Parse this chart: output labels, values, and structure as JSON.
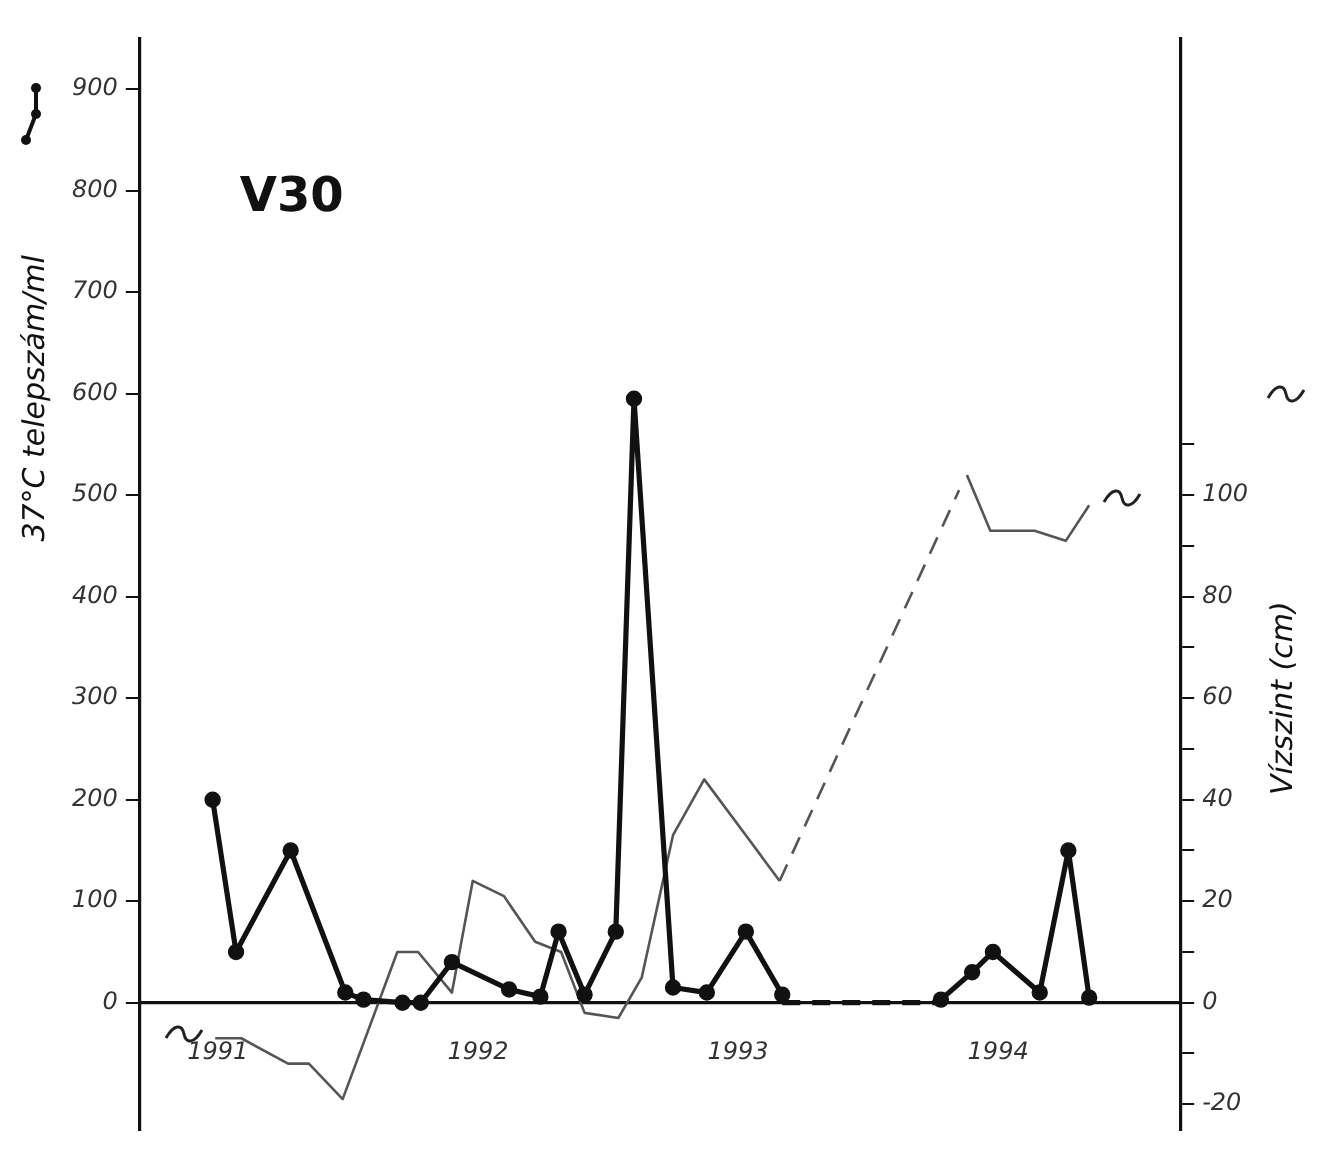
{
  "chart_data": {
    "type": "line",
    "title": "V30",
    "ylabel": "37°C telepszám/ml",
    "y2label": "Vízszint (cm)",
    "xlim": [
      1991,
      1995
    ],
    "xticks": [
      {
        "value": 1991.3,
        "label": "1991"
      },
      {
        "value": 1992.3,
        "label": "1992"
      },
      {
        "value": 1993.3,
        "label": "1993"
      },
      {
        "value": 1994.3,
        "label": "1994"
      }
    ],
    "ylim": [
      -125,
      950
    ],
    "yticks": [
      0,
      100,
      200,
      300,
      400,
      500,
      600,
      700,
      800,
      900
    ],
    "y2lim": [
      -25,
      190
    ],
    "y2ticks": [
      -20,
      {
        "value": -10,
        "label": null
      },
      0,
      {
        "value": 10,
        "label": null
      },
      20,
      {
        "value": 30,
        "label": null
      },
      40,
      {
        "value": 50,
        "label": null
      },
      60,
      {
        "value": 70,
        "label": null
      },
      80,
      {
        "value": 90,
        "label": null
      },
      100,
      {
        "value": 110,
        "label": null
      }
    ],
    "grid": false,
    "legend": false,
    "series": [
      {
        "color": "#111111",
        "marker": "circle",
        "line_style": "solid",
        "x": [
          1991.28,
          1991.37,
          1991.58,
          1991.79,
          1991.86,
          1992.01,
          1992.08,
          1992.2,
          1992.42,
          1992.54,
          1992.61,
          1992.71,
          1992.83,
          1992.9,
          1993.05,
          1993.18,
          1993.33,
          1993.47
        ],
        "values": [
          200,
          50,
          150,
          10,
          3,
          0,
          0,
          40,
          13,
          6,
          70,
          8,
          70,
          595,
          15,
          10,
          70,
          8
        ]
      },
      {
        "color": "#111111",
        "marker": "none",
        "line_style": "dashed",
        "x": [
          1993.47,
          1994.08
        ],
        "values": [
          0,
          0
        ]
      },
      {
        "color": "#111111",
        "marker": "circle",
        "line_style": "solid",
        "x": [
          1994.08,
          1994.2,
          1994.28,
          1994.46,
          1994.57,
          1994.65
        ],
        "values": [
          3,
          30,
          50,
          10,
          150,
          5
        ]
      },
      {
        "color": "#555555",
        "marker": "none",
        "line_style": "solid",
        "axis": "y2",
        "x": [
          1991.29,
          1991.39,
          1991.57,
          1991.65,
          1991.78,
          1991.99,
          1992.07,
          1992.2,
          1992.28,
          1992.4,
          1992.52,
          1992.62,
          1992.71,
          1992.84,
          1992.93,
          1993.05,
          1993.17,
          1993.33,
          1993.46
        ],
        "values": [
          -7,
          -7,
          -12,
          -12,
          -19,
          10,
          10,
          2,
          24,
          21,
          12,
          10,
          -2,
          -3,
          5,
          33,
          44,
          33,
          24
        ]
      },
      {
        "color": "#555555",
        "marker": "none",
        "line_style": "dashed",
        "axis": "y2",
        "x": [
          1993.46,
          1994.15
        ],
        "values": [
          24,
          101
        ]
      },
      {
        "color": "#555555",
        "marker": "none",
        "line_style": "solid",
        "axis": "y2",
        "x": [
          1994.18,
          1994.27,
          1994.44,
          1994.56,
          1994.65
        ],
        "values": [
          104,
          93,
          93,
          91,
          98
        ]
      }
    ]
  }
}
